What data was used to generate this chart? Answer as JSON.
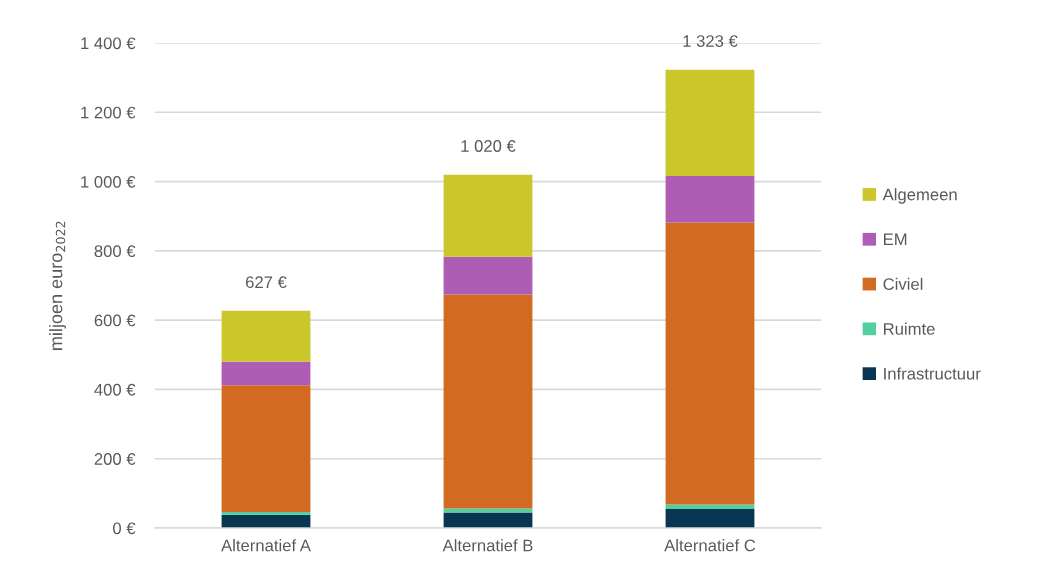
{
  "chart_data": {
    "type": "bar",
    "stacked": true,
    "ylabel": "miljoen euro$_{2022}$",
    "categories": [
      "Alternatief A",
      "Alternatief B",
      "Alternatief C"
    ],
    "series": [
      {
        "name": "Infrastructuur",
        "color": "#083652",
        "values": [
          38,
          45,
          55
        ]
      },
      {
        "name": "Ruimte",
        "color": "#52cfa0",
        "values": [
          8,
          11,
          13
        ]
      },
      {
        "name": "Civiel",
        "color": "#d26a21",
        "values": [
          366,
          618,
          814
        ]
      },
      {
        "name": "EM",
        "color": "#ae5db4",
        "values": [
          68,
          109,
          134
        ]
      },
      {
        "name": "Algemeen",
        "color": "#cbc62a",
        "values": [
          147,
          237,
          307
        ]
      }
    ],
    "totals": [
      "627 €",
      "1 020 €",
      "1 323 €"
    ],
    "ylim": [
      0,
      1400
    ],
    "yticks": [
      {
        "value": 0,
        "label": "0 €"
      },
      {
        "value": 200,
        "label": "200 €"
      },
      {
        "value": 400,
        "label": "400 €"
      },
      {
        "value": 600,
        "label": "600 €"
      },
      {
        "value": 800,
        "label": "800 €"
      },
      {
        "value": 1000,
        "label": "1 000 €"
      },
      {
        "value": 1200,
        "label": "1 200 €"
      },
      {
        "value": 1400,
        "label": "1 400 €"
      }
    ],
    "grid": "y",
    "legend": "right"
  }
}
